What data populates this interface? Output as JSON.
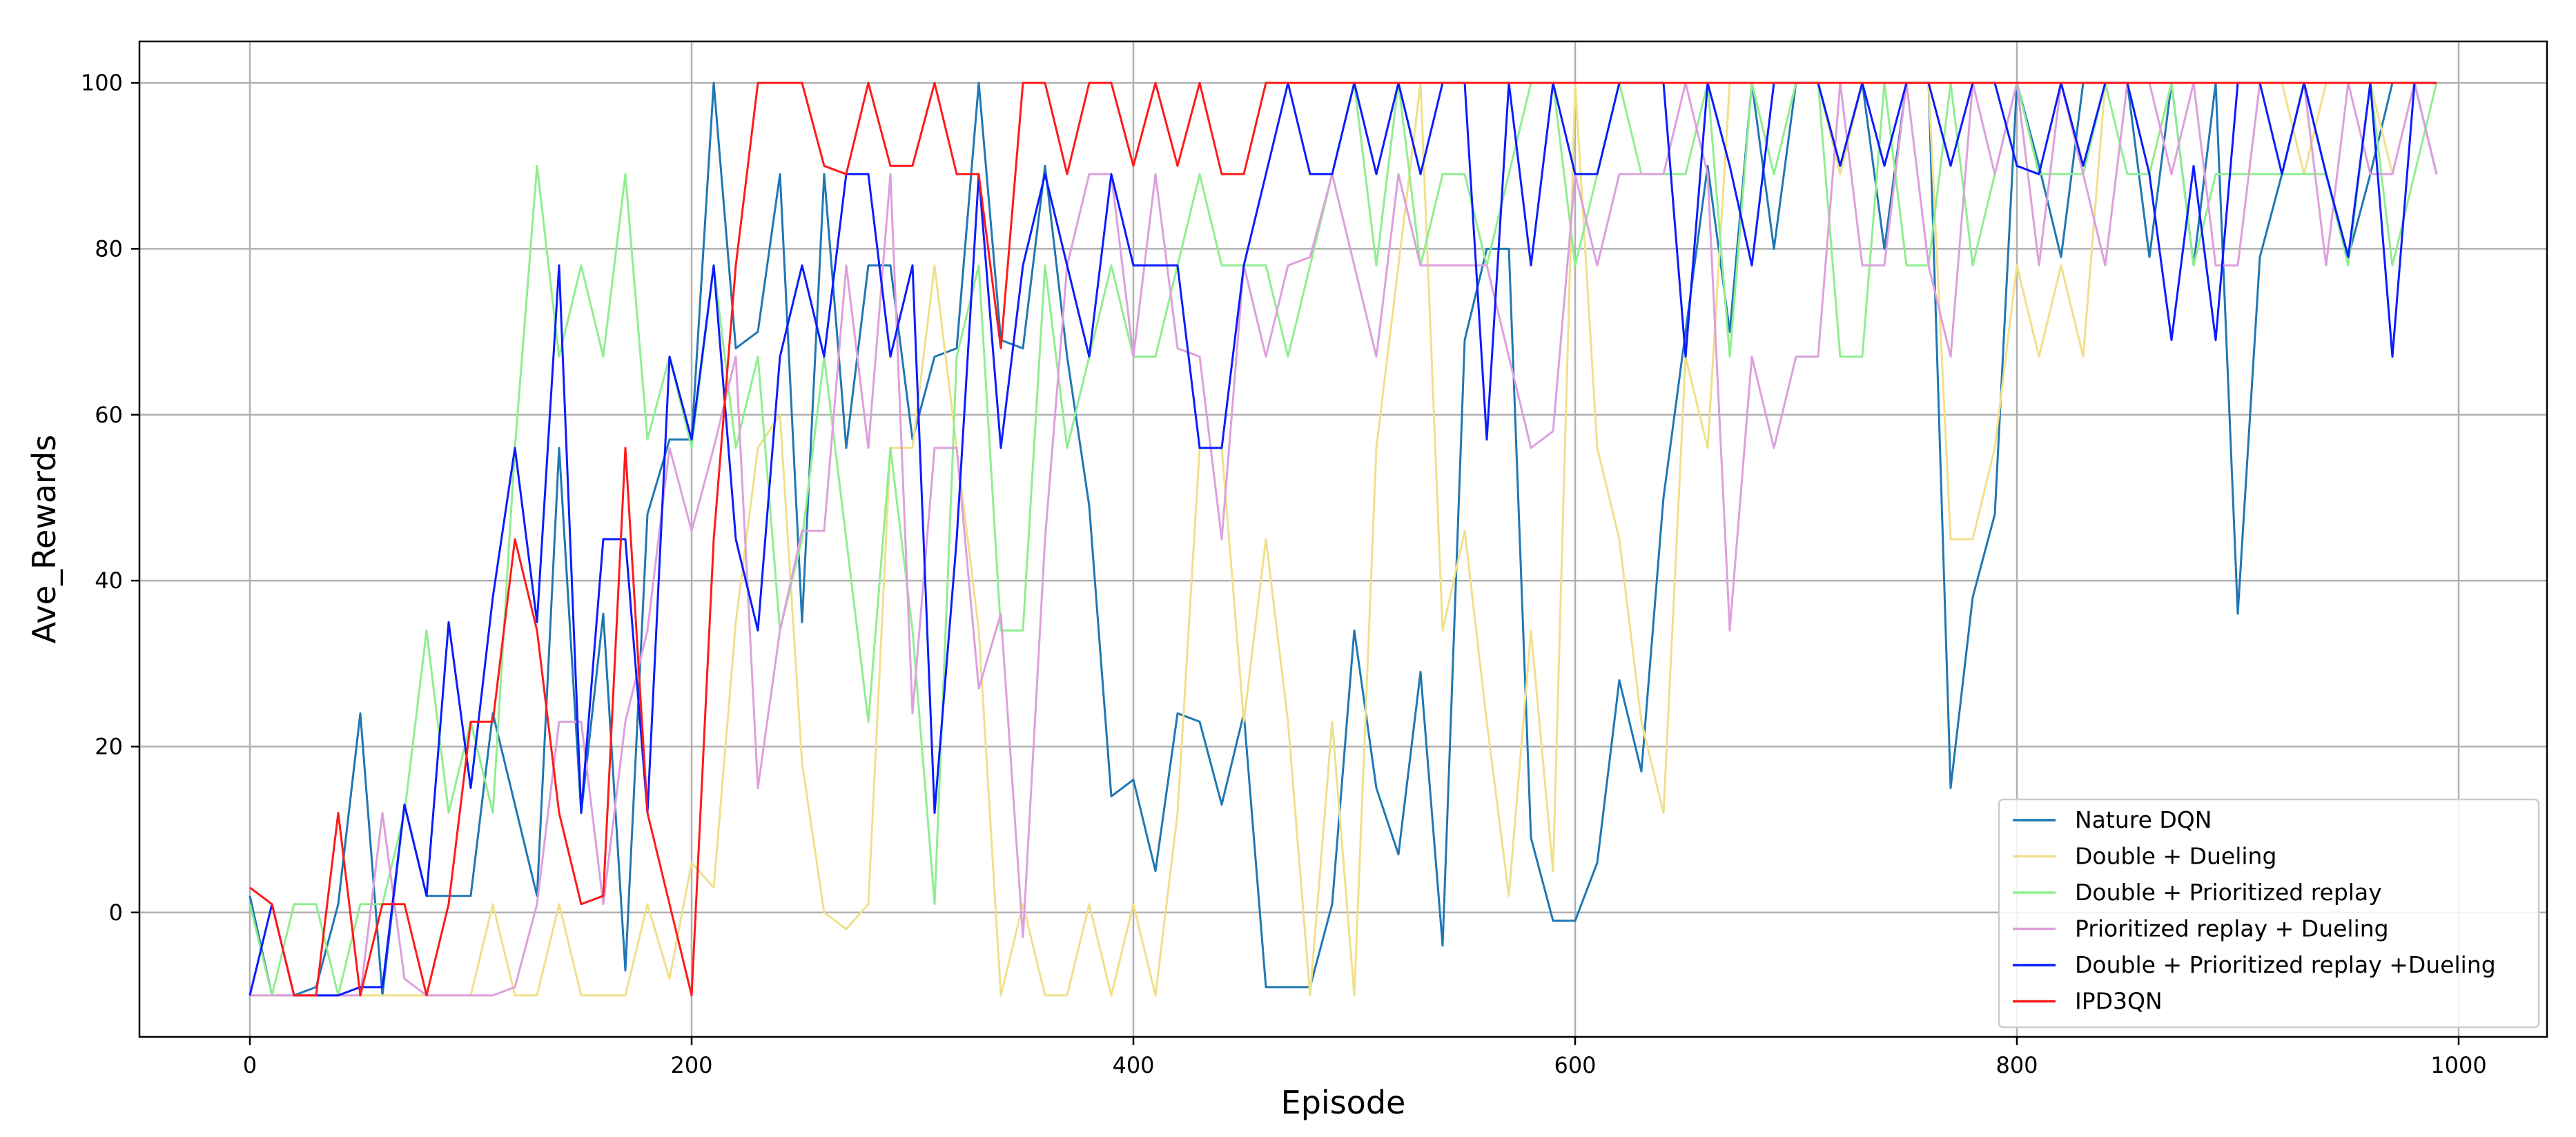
{
  "chart_data": {
    "type": "line",
    "xlabel": "Episode",
    "ylabel": "Ave_Rewards",
    "xlim": [
      -50,
      1040
    ],
    "ylim": [
      -15,
      105
    ],
    "xticks": [
      0,
      200,
      400,
      600,
      800,
      1000
    ],
    "yticks": [
      0,
      20,
      40,
      60,
      80,
      100
    ],
    "grid": true,
    "legend_position": "lower-right",
    "x": [
      0,
      10,
      20,
      30,
      40,
      50,
      60,
      70,
      80,
      90,
      100,
      110,
      120,
      130,
      140,
      150,
      160,
      170,
      180,
      190,
      200,
      210,
      220,
      230,
      240,
      250,
      260,
      270,
      280,
      290,
      300,
      310,
      320,
      330,
      340,
      350,
      360,
      370,
      380,
      390,
      400,
      410,
      420,
      430,
      440,
      450,
      460,
      470,
      480,
      490,
      500,
      510,
      520,
      530,
      540,
      550,
      560,
      570,
      580,
      590,
      600,
      610,
      620,
      630,
      640,
      650,
      660,
      670,
      680,
      690,
      700,
      710,
      720,
      730,
      740,
      750,
      760,
      770,
      780,
      790,
      800,
      810,
      820,
      830,
      840,
      850,
      860,
      870,
      880,
      890,
      900,
      910,
      920,
      930,
      940,
      950,
      960,
      970,
      980,
      990
    ],
    "series": [
      {
        "name": "Nature DQN",
        "color": "#1f77b4",
        "values": [
          2,
          -10,
          -10,
          -9,
          1,
          24,
          -10,
          13,
          2,
          2,
          2,
          24,
          13,
          2,
          56,
          12,
          36,
          -7,
          48,
          57,
          57,
          100,
          68,
          70,
          89,
          35,
          89,
          56,
          78,
          78,
          57,
          67,
          68,
          100,
          69,
          68,
          90,
          67,
          49,
          14,
          16,
          5,
          24,
          23,
          13,
          24,
          -9,
          -9,
          -9,
          1,
          34,
          15,
          7,
          29,
          -4,
          69,
          80,
          80,
          9,
          -1,
          -1,
          6,
          28,
          17,
          50,
          70,
          90,
          70,
          100,
          80,
          100,
          100,
          90,
          100,
          80,
          100,
          100,
          15,
          38,
          48,
          100,
          90,
          79,
          100,
          100,
          100,
          79,
          100,
          78,
          100,
          36,
          79,
          89,
          100,
          89,
          79,
          89,
          100,
          100,
          89
        ]
      },
      {
        "name": "Double + Dueling",
        "color": "#f0e08a",
        "values": [
          -10,
          -10,
          -10,
          -10,
          -10,
          -10,
          -10,
          -10,
          -10,
          -10,
          -10,
          1,
          -10,
          -10,
          1,
          -10,
          -10,
          -10,
          1,
          -8,
          6,
          3,
          35,
          56,
          60,
          18,
          0,
          -2,
          1,
          56,
          56,
          78,
          56,
          34,
          -10,
          1,
          -10,
          -10,
          1,
          -10,
          1,
          -10,
          12,
          56,
          56,
          23,
          45,
          23,
          -10,
          23,
          -10,
          56,
          78,
          100,
          34,
          46,
          23,
          2,
          34,
          5,
          100,
          56,
          45,
          23,
          12,
          67,
          56,
          100,
          100,
          89,
          100,
          100,
          89,
          100,
          100,
          100,
          100,
          45,
          45,
          56,
          78,
          67,
          78,
          67,
          100,
          100,
          89,
          100,
          100,
          100,
          100,
          100,
          100,
          89,
          100,
          100,
          100,
          89,
          100,
          100
        ]
      },
      {
        "name": "Double + Prioritized replay",
        "color": "#90ee90",
        "values": [
          1,
          -10,
          1,
          1,
          -10,
          1,
          1,
          12,
          34,
          12,
          23,
          12,
          56,
          90,
          67,
          78,
          67,
          89,
          57,
          67,
          56,
          78,
          56,
          67,
          34,
          45,
          67,
          45,
          23,
          56,
          34,
          1,
          67,
          78,
          34,
          34,
          78,
          56,
          67,
          78,
          67,
          67,
          78,
          89,
          78,
          78,
          78,
          67,
          78,
          89,
          100,
          78,
          100,
          78,
          89,
          89,
          78,
          89,
          100,
          100,
          78,
          89,
          100,
          89,
          89,
          89,
          100,
          67,
          100,
          89,
          100,
          100,
          67,
          67,
          100,
          78,
          78,
          100,
          78,
          89,
          100,
          89,
          89,
          89,
          100,
          89,
          89,
          100,
          78,
          89,
          89,
          89,
          89,
          89,
          89,
          78,
          100,
          78,
          89,
          100
        ]
      },
      {
        "name": "Prioritized replay + Dueling",
        "color": "#dda0dd",
        "values": [
          -10,
          -10,
          -10,
          -10,
          -10,
          -10,
          12,
          -8,
          -10,
          -10,
          -10,
          -10,
          -9,
          1,
          23,
          23,
          1,
          23,
          34,
          56,
          46,
          56,
          67,
          15,
          34,
          46,
          46,
          78,
          56,
          89,
          24,
          56,
          56,
          27,
          36,
          -3,
          45,
          78,
          89,
          89,
          67,
          89,
          68,
          67,
          45,
          78,
          67,
          78,
          79,
          89,
          78,
          67,
          89,
          78,
          78,
          78,
          78,
          67,
          56,
          58,
          89,
          78,
          89,
          89,
          89,
          100,
          89,
          34,
          67,
          56,
          67,
          67,
          100,
          78,
          78,
          100,
          78,
          67,
          100,
          89,
          100,
          78,
          100,
          89,
          78,
          100,
          100,
          89,
          100,
          78,
          78,
          100,
          100,
          100,
          78,
          100,
          89,
          89,
          100,
          89
        ]
      },
      {
        "name": "Double + Prioritized replay +Dueling",
        "color": "#0a1cff",
        "values": [
          -10,
          1,
          -10,
          -10,
          -10,
          -9,
          -9,
          13,
          2,
          35,
          15,
          38,
          56,
          35,
          78,
          12,
          45,
          45,
          12,
          67,
          57,
          78,
          45,
          34,
          67,
          78,
          67,
          89,
          89,
          67,
          78,
          12,
          45,
          89,
          56,
          78,
          89,
          78,
          67,
          89,
          78,
          78,
          78,
          56,
          56,
          78,
          89,
          100,
          89,
          89,
          100,
          89,
          100,
          89,
          100,
          100,
          57,
          100,
          78,
          100,
          89,
          89,
          100,
          100,
          100,
          67,
          100,
          90,
          78,
          100,
          100,
          100,
          90,
          100,
          90,
          100,
          100,
          90,
          100,
          100,
          90,
          89,
          100,
          90,
          100,
          100,
          89,
          69,
          90,
          69,
          100,
          100,
          89,
          100,
          89,
          79,
          100,
          67,
          100,
          100
        ]
      },
      {
        "name": "IPD3QN",
        "color": "#ff1a1a",
        "values": [
          3,
          1,
          -10,
          -10,
          12,
          -10,
          1,
          1,
          -10,
          1,
          23,
          23,
          45,
          34,
          12,
          1,
          2,
          56,
          12,
          1,
          -10,
          45,
          78,
          100,
          100,
          100,
          90,
          89,
          100,
          90,
          90,
          100,
          89,
          89,
          68,
          100,
          100,
          89,
          100,
          100,
          90,
          100,
          90,
          100,
          89,
          89,
          100,
          100,
          100,
          100,
          100,
          100,
          100,
          100,
          100,
          100,
          100,
          100,
          100,
          100,
          100,
          100,
          100,
          100,
          100,
          100,
          100,
          100,
          100,
          100,
          100,
          100,
          100,
          100,
          100,
          100,
          100,
          100,
          100,
          100,
          100,
          100,
          100,
          100,
          100,
          100,
          100,
          100,
          100,
          100,
          100,
          100,
          100,
          100,
          100,
          100,
          100,
          100,
          100,
          100
        ]
      }
    ]
  }
}
